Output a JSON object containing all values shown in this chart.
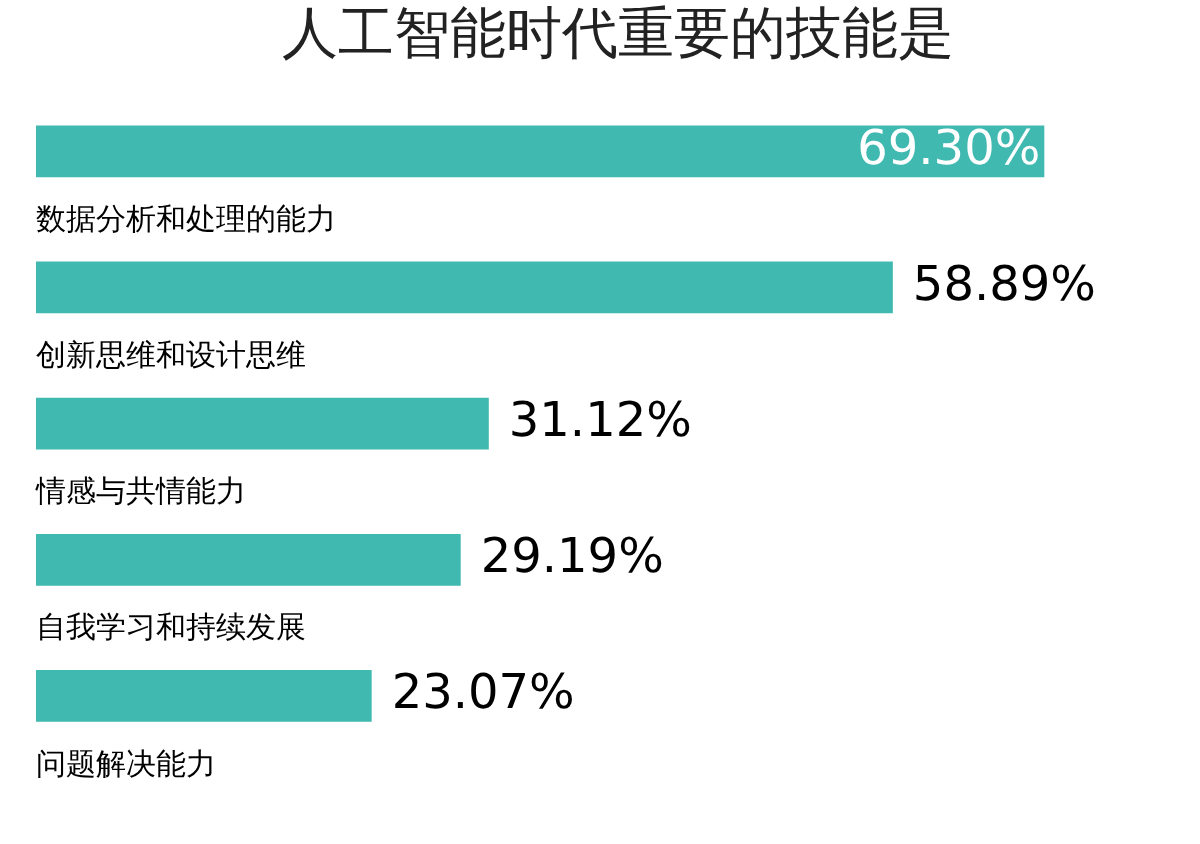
{
  "chart_data": {
    "type": "bar",
    "orientation": "horizontal",
    "title": "人工智能时代重要的技能是",
    "categories": [
      "数据分析和处理的能力",
      "创新思维和设计思维",
      "情感与共情能力",
      "自我学习和持续发展",
      "问题解决能力"
    ],
    "values": [
      69.3,
      58.89,
      31.12,
      29.19,
      23.07
    ],
    "value_labels": [
      "69.30%",
      "58.89%",
      "31.12%",
      "29.19%",
      "23.07%"
    ],
    "color": "#40b9b1"
  }
}
